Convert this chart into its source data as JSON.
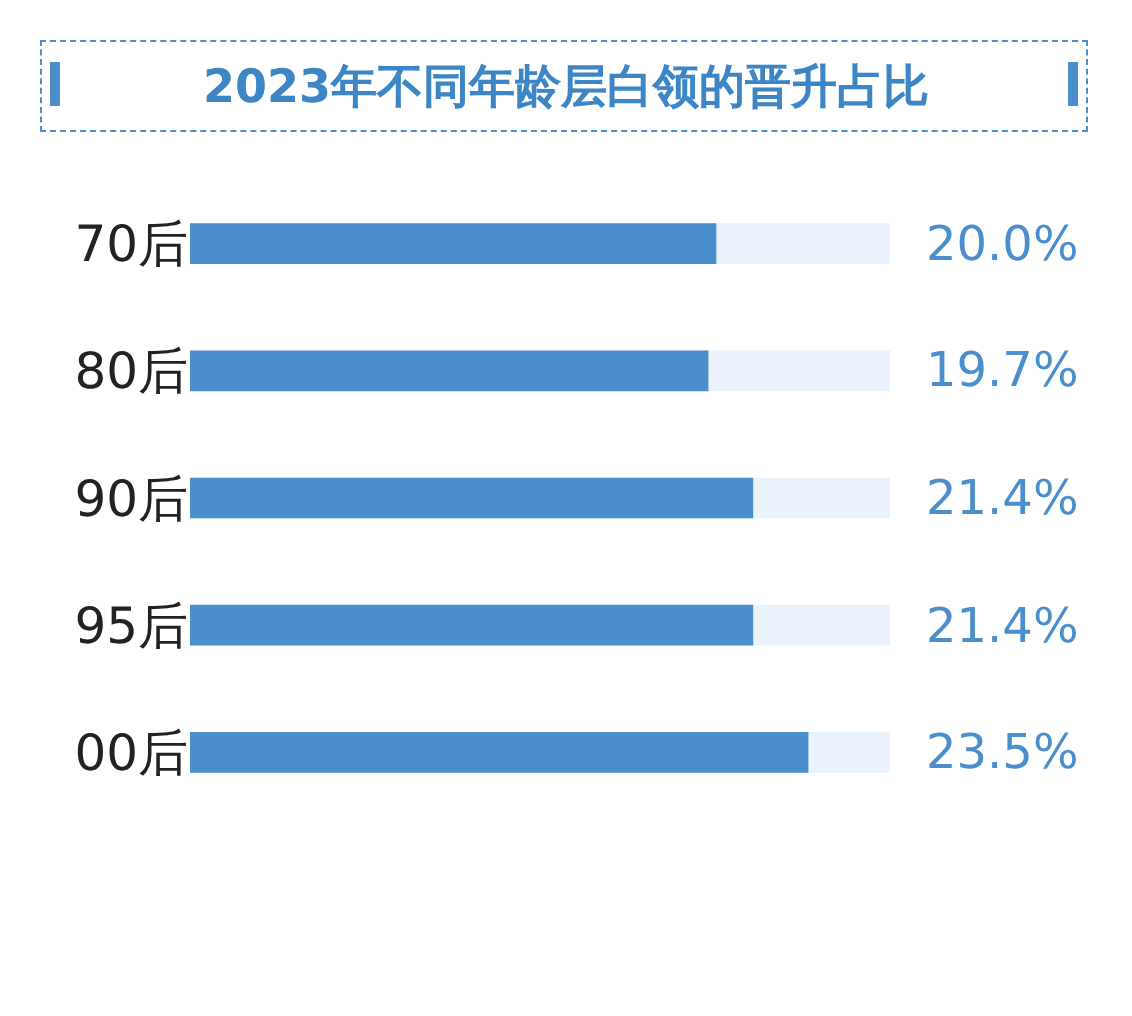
{
  "chart_data": {
    "type": "bar",
    "orientation": "horizontal",
    "title": "2023年不同年龄层白领的晋升占比",
    "categories": [
      "70后",
      "80后",
      "90后",
      "95后",
      "00后"
    ],
    "values": [
      20.0,
      19.7,
      21.4,
      21.4,
      23.5
    ],
    "value_labels": [
      "20.0%",
      "19.7%",
      "21.4%",
      "21.4%",
      "23.5%"
    ],
    "color": "#4a8fcc",
    "xlim": [
      0,
      26.6
    ],
    "grid": false,
    "legend": false,
    "tick_labels": "y"
  }
}
